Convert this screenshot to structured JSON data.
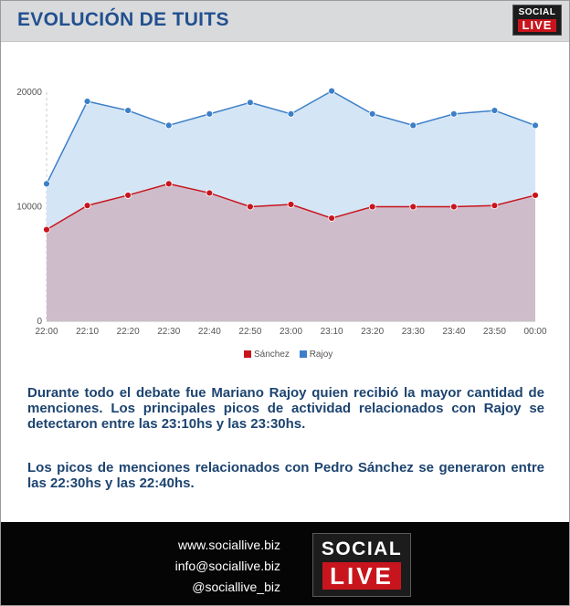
{
  "header": {
    "title": "EVOLUCIÓN DE TUITS",
    "logo_line1": "SOCIAL",
    "logo_line2": "LIVE"
  },
  "chart_data": {
    "type": "area",
    "title": "",
    "xlabel": "",
    "ylabel": "",
    "ylim": [
      0,
      20000
    ],
    "yticks": [
      0,
      10000,
      20000
    ],
    "categories": [
      "22:00",
      "22:10",
      "22:20",
      "22:30",
      "22:40",
      "22:50",
      "23:00",
      "23:10",
      "23:20",
      "23:30",
      "23:40",
      "23:50",
      "00:00"
    ],
    "series": [
      {
        "name": "Sánchez",
        "color": "#c8151d",
        "fill": "#cfbccb",
        "values": [
          8000,
          10100,
          11000,
          12000,
          11200,
          10000,
          10200,
          9000,
          10000,
          10000,
          10000,
          10100,
          11000
        ]
      },
      {
        "name": "Rajoy",
        "color": "#3c7fc8",
        "fill": "#d4e5f5",
        "values": [
          12000,
          19200,
          18400,
          17100,
          18100,
          19100,
          18100,
          20100,
          18100,
          17100,
          18100,
          18400,
          17100
        ]
      }
    ],
    "grid": false,
    "legend": "bottom"
  },
  "description": {
    "p1": "Durante todo el debate fue Mariano Rajoy quien recibió la mayor cantidad de menciones. Los principales picos de actividad relacionados con Rajoy se detectaron entre las 23:10hs y las 23:30hs.",
    "p2": "Los picos de menciones relacionados con Pedro Sánchez se generaron entre las 22:30hs y las 22:40hs."
  },
  "footer": {
    "website": "www.sociallive.biz",
    "email": "info@sociallive.biz",
    "handle": "@sociallive_biz",
    "logo_line1": "SOCIAL",
    "logo_line2": "LIVE"
  }
}
